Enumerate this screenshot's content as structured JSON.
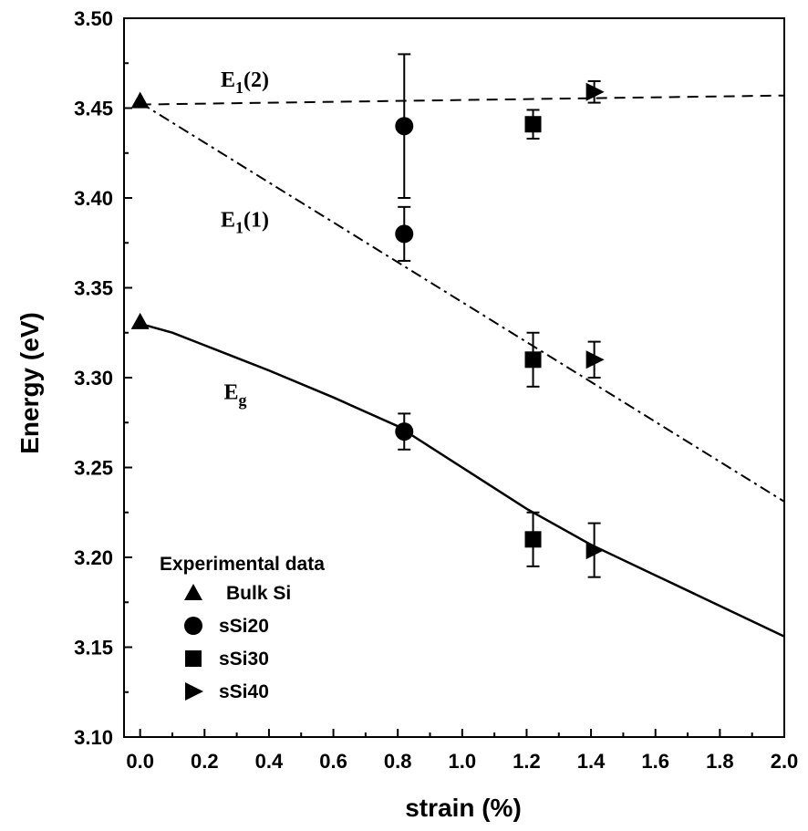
{
  "chart_data": {
    "type": "scatter",
    "xlabel": "strain (%)",
    "ylabel": "Energy (eV)",
    "xlim": [
      -0.05,
      2.0
    ],
    "ylim": [
      3.1,
      3.5
    ],
    "x_ticks": [
      0.0,
      0.2,
      0.4,
      0.6,
      0.8,
      1.0,
      1.2,
      1.4,
      1.6,
      1.8,
      2.0
    ],
    "y_ticks": [
      3.1,
      3.15,
      3.2,
      3.25,
      3.3,
      3.35,
      3.4,
      3.45,
      3.5
    ],
    "grid": false,
    "lines": [
      {
        "key": "E1_2",
        "label_main": "E",
        "label_sub": "1",
        "label_suffix": "(2)",
        "style": "dashed",
        "x": [
          0.0,
          2.0
        ],
        "y": [
          3.452,
          3.457
        ],
        "label_at": [
          0.25,
          3.462
        ]
      },
      {
        "key": "E1_1",
        "label_main": "E",
        "label_sub": "1",
        "label_suffix": "(1)",
        "style": "dash-dot",
        "x": [
          0.0,
          2.0
        ],
        "y": [
          3.453,
          3.231
        ],
        "label_at": [
          0.25,
          3.384
        ]
      },
      {
        "key": "Eg",
        "label_main": "E",
        "label_sub": "g",
        "label_suffix": "",
        "style": "solid",
        "x": [
          0.0,
          0.1,
          0.2,
          0.4,
          0.6,
          0.8,
          1.0,
          1.2,
          1.4,
          1.6,
          1.8,
          2.0
        ],
        "y": [
          3.33,
          3.325,
          3.318,
          3.304,
          3.289,
          3.273,
          3.25,
          3.227,
          3.207,
          3.19,
          3.173,
          3.156
        ],
        "label_at": [
          0.26,
          3.288
        ]
      }
    ],
    "legend": {
      "title": "Experimental data",
      "position": "bottom-left",
      "entries": [
        {
          "name": "Bulk Si",
          "marker": "triangle-up"
        },
        {
          "name": "sSi20",
          "marker": "circle"
        },
        {
          "name": "sSi30",
          "marker": "square"
        },
        {
          "name": "sSi40",
          "marker": "triangle-right"
        }
      ]
    },
    "series": [
      {
        "name": "Bulk Si",
        "marker": "triangle-up",
        "points": [
          {
            "x": 0.0,
            "y": 3.454,
            "err": 0
          },
          {
            "x": 0.0,
            "y": 3.331,
            "err": 0
          }
        ]
      },
      {
        "name": "sSi20",
        "marker": "circle",
        "points": [
          {
            "x": 0.82,
            "y": 3.44,
            "err": 0.04
          },
          {
            "x": 0.82,
            "y": 3.38,
            "err": 0.015
          },
          {
            "x": 0.82,
            "y": 3.27,
            "err": 0.01
          }
        ]
      },
      {
        "name": "sSi30",
        "marker": "square",
        "points": [
          {
            "x": 1.22,
            "y": 3.441,
            "err": 0.008
          },
          {
            "x": 1.22,
            "y": 3.31,
            "err": 0.015
          },
          {
            "x": 1.22,
            "y": 3.21,
            "err": 0.015
          }
        ]
      },
      {
        "name": "sSi40",
        "marker": "triangle-right",
        "points": [
          {
            "x": 1.41,
            "y": 3.459,
            "err": 0.006
          },
          {
            "x": 1.41,
            "y": 3.31,
            "err": 0.01
          },
          {
            "x": 1.41,
            "y": 3.204,
            "err": 0.015
          }
        ]
      }
    ]
  }
}
